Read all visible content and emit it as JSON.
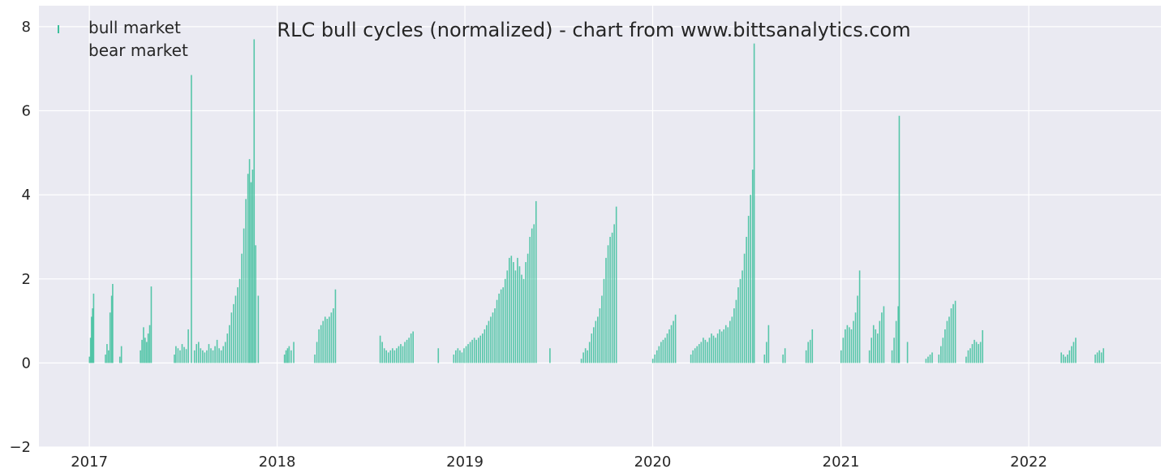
{
  "chart_data": {
    "type": "bar",
    "title": "RLC bull cycles (normalized)  - chart from www.bittsanalytics.com",
    "xlabel": "",
    "ylabel": "",
    "x_range": [
      "2016-09-25",
      "2022-09-15"
    ],
    "ylim": [
      -2,
      8.5
    ],
    "y_ticks": [
      -2,
      0,
      2,
      4,
      6,
      8
    ],
    "x_ticks": [
      {
        "date": "2017-01-01",
        "label": "2017"
      },
      {
        "date": "2018-01-01",
        "label": "2018"
      },
      {
        "date": "2019-01-01",
        "label": "2019"
      },
      {
        "date": "2020-01-01",
        "label": "2020"
      },
      {
        "date": "2021-01-01",
        "label": "2021"
      },
      {
        "date": "2022-01-01",
        "label": "2022"
      }
    ],
    "grid": true,
    "legend_placement": "upper-left",
    "colors": {
      "bull": "#3cbf9c",
      "bear": "#e07060",
      "background": "#eaeaf2",
      "grid": "#ffffff"
    },
    "series": [
      {
        "name": "bull market",
        "points": [
          [
            "2017-01-01",
            0.15
          ],
          [
            "2017-01-03",
            0.6
          ],
          [
            "2017-01-05",
            1.1
          ],
          [
            "2017-01-07",
            1.3
          ],
          [
            "2017-01-09",
            1.65
          ],
          [
            "2017-02-01",
            0.2
          ],
          [
            "2017-02-04",
            0.45
          ],
          [
            "2017-02-07",
            0.3
          ],
          [
            "2017-02-10",
            1.2
          ],
          [
            "2017-02-13",
            1.6
          ],
          [
            "2017-02-15",
            1.88
          ],
          [
            "2017-03-01",
            0.15
          ],
          [
            "2017-03-04",
            0.4
          ],
          [
            "2017-04-10",
            0.3
          ],
          [
            "2017-04-13",
            0.55
          ],
          [
            "2017-04-16",
            0.85
          ],
          [
            "2017-04-19",
            0.6
          ],
          [
            "2017-04-22",
            0.5
          ],
          [
            "2017-04-25",
            0.7
          ],
          [
            "2017-04-28",
            0.9
          ],
          [
            "2017-05-01",
            1.82
          ],
          [
            "2017-06-15",
            0.2
          ],
          [
            "2017-06-18",
            0.4
          ],
          [
            "2017-06-22",
            0.35
          ],
          [
            "2017-06-26",
            0.3
          ],
          [
            "2017-06-30",
            0.45
          ],
          [
            "2017-07-04",
            0.38
          ],
          [
            "2017-07-08",
            0.33
          ],
          [
            "2017-07-12",
            0.8
          ],
          [
            "2017-07-18",
            6.85
          ],
          [
            "2017-07-24",
            0.3
          ],
          [
            "2017-07-28",
            0.45
          ],
          [
            "2017-08-01",
            0.5
          ],
          [
            "2017-08-05",
            0.35
          ],
          [
            "2017-08-09",
            0.3
          ],
          [
            "2017-08-13",
            0.25
          ],
          [
            "2017-08-17",
            0.3
          ],
          [
            "2017-08-21",
            0.45
          ],
          [
            "2017-08-25",
            0.35
          ],
          [
            "2017-08-29",
            0.3
          ],
          [
            "2017-09-02",
            0.4
          ],
          [
            "2017-09-06",
            0.55
          ],
          [
            "2017-09-10",
            0.35
          ],
          [
            "2017-09-14",
            0.3
          ],
          [
            "2017-09-18",
            0.4
          ],
          [
            "2017-09-22",
            0.5
          ],
          [
            "2017-09-26",
            0.7
          ],
          [
            "2017-09-30",
            0.9
          ],
          [
            "2017-10-04",
            1.2
          ],
          [
            "2017-10-08",
            1.4
          ],
          [
            "2017-10-12",
            1.6
          ],
          [
            "2017-10-16",
            1.8
          ],
          [
            "2017-10-20",
            2.0
          ],
          [
            "2017-10-24",
            2.6
          ],
          [
            "2017-10-28",
            3.2
          ],
          [
            "2017-11-01",
            3.9
          ],
          [
            "2017-11-05",
            4.5
          ],
          [
            "2017-11-08",
            4.85
          ],
          [
            "2017-11-11",
            4.3
          ],
          [
            "2017-11-14",
            4.6
          ],
          [
            "2017-11-17",
            7.7
          ],
          [
            "2017-11-20",
            2.8
          ],
          [
            "2017-11-25",
            1.6
          ],
          [
            "2018-01-15",
            0.2
          ],
          [
            "2018-01-18",
            0.3
          ],
          [
            "2018-01-21",
            0.35
          ],
          [
            "2018-01-24",
            0.4
          ],
          [
            "2018-01-28",
            0.3
          ],
          [
            "2018-02-02",
            0.5
          ],
          [
            "2018-03-15",
            0.2
          ],
          [
            "2018-03-19",
            0.5
          ],
          [
            "2018-03-23",
            0.8
          ],
          [
            "2018-03-27",
            0.9
          ],
          [
            "2018-03-31",
            1.0
          ],
          [
            "2018-04-04",
            1.1
          ],
          [
            "2018-04-08",
            1.05
          ],
          [
            "2018-04-12",
            1.1
          ],
          [
            "2018-04-16",
            1.2
          ],
          [
            "2018-04-20",
            1.3
          ],
          [
            "2018-04-24",
            1.75
          ],
          [
            "2018-07-20",
            0.65
          ],
          [
            "2018-07-24",
            0.5
          ],
          [
            "2018-07-28",
            0.35
          ],
          [
            "2018-08-01",
            0.3
          ],
          [
            "2018-08-05",
            0.25
          ],
          [
            "2018-08-09",
            0.3
          ],
          [
            "2018-08-13",
            0.35
          ],
          [
            "2018-08-17",
            0.3
          ],
          [
            "2018-08-21",
            0.35
          ],
          [
            "2018-08-25",
            0.4
          ],
          [
            "2018-08-29",
            0.45
          ],
          [
            "2018-09-02",
            0.4
          ],
          [
            "2018-09-06",
            0.5
          ],
          [
            "2018-09-10",
            0.55
          ],
          [
            "2018-09-14",
            0.6
          ],
          [
            "2018-09-18",
            0.7
          ],
          [
            "2018-09-22",
            0.75
          ],
          [
            "2018-11-10",
            0.35
          ],
          [
            "2018-12-10",
            0.2
          ],
          [
            "2018-12-14",
            0.3
          ],
          [
            "2018-12-18",
            0.35
          ],
          [
            "2018-12-22",
            0.3
          ],
          [
            "2018-12-26",
            0.25
          ],
          [
            "2018-12-30",
            0.35
          ],
          [
            "2019-01-03",
            0.4
          ],
          [
            "2019-01-07",
            0.45
          ],
          [
            "2019-01-11",
            0.5
          ],
          [
            "2019-01-15",
            0.55
          ],
          [
            "2019-01-19",
            0.6
          ],
          [
            "2019-01-23",
            0.55
          ],
          [
            "2019-01-27",
            0.6
          ],
          [
            "2019-01-31",
            0.65
          ],
          [
            "2019-02-04",
            0.7
          ],
          [
            "2019-02-08",
            0.8
          ],
          [
            "2019-02-12",
            0.9
          ],
          [
            "2019-02-16",
            1.0
          ],
          [
            "2019-02-20",
            1.1
          ],
          [
            "2019-02-24",
            1.2
          ],
          [
            "2019-02-28",
            1.3
          ],
          [
            "2019-03-04",
            1.5
          ],
          [
            "2019-03-08",
            1.65
          ],
          [
            "2019-03-12",
            1.75
          ],
          [
            "2019-03-16",
            1.8
          ],
          [
            "2019-03-20",
            2.0
          ],
          [
            "2019-03-24",
            2.2
          ],
          [
            "2019-03-28",
            2.5
          ],
          [
            "2019-04-01",
            2.55
          ],
          [
            "2019-04-05",
            2.4
          ],
          [
            "2019-04-09",
            2.2
          ],
          [
            "2019-04-13",
            2.5
          ],
          [
            "2019-04-17",
            2.3
          ],
          [
            "2019-04-21",
            2.1
          ],
          [
            "2019-04-25",
            2.0
          ],
          [
            "2019-04-29",
            2.4
          ],
          [
            "2019-05-03",
            2.6
          ],
          [
            "2019-05-07",
            3.0
          ],
          [
            "2019-05-11",
            3.2
          ],
          [
            "2019-05-15",
            3.3
          ],
          [
            "2019-05-19",
            3.85
          ],
          [
            "2019-06-15",
            0.35
          ],
          [
            "2019-08-15",
            0.1
          ],
          [
            "2019-08-19",
            0.25
          ],
          [
            "2019-08-23",
            0.35
          ],
          [
            "2019-08-27",
            0.3
          ],
          [
            "2019-08-31",
            0.5
          ],
          [
            "2019-09-04",
            0.7
          ],
          [
            "2019-09-08",
            0.85
          ],
          [
            "2019-09-12",
            1.0
          ],
          [
            "2019-09-16",
            1.1
          ],
          [
            "2019-09-20",
            1.3
          ],
          [
            "2019-09-24",
            1.6
          ],
          [
            "2019-09-28",
            2.0
          ],
          [
            "2019-10-02",
            2.5
          ],
          [
            "2019-10-06",
            2.8
          ],
          [
            "2019-10-10",
            3.0
          ],
          [
            "2019-10-14",
            3.1
          ],
          [
            "2019-10-18",
            3.3
          ],
          [
            "2019-10-22",
            3.72
          ],
          [
            "2020-01-01",
            0.1
          ],
          [
            "2020-01-05",
            0.2
          ],
          [
            "2020-01-09",
            0.3
          ],
          [
            "2020-01-13",
            0.4
          ],
          [
            "2020-01-17",
            0.5
          ],
          [
            "2020-01-21",
            0.55
          ],
          [
            "2020-01-25",
            0.6
          ],
          [
            "2020-01-29",
            0.7
          ],
          [
            "2020-02-02",
            0.8
          ],
          [
            "2020-02-06",
            0.9
          ],
          [
            "2020-02-10",
            1.0
          ],
          [
            "2020-02-14",
            1.15
          ],
          [
            "2020-03-15",
            0.2
          ],
          [
            "2020-03-19",
            0.3
          ],
          [
            "2020-03-23",
            0.35
          ],
          [
            "2020-03-27",
            0.4
          ],
          [
            "2020-03-31",
            0.45
          ],
          [
            "2020-04-04",
            0.5
          ],
          [
            "2020-04-08",
            0.6
          ],
          [
            "2020-04-12",
            0.55
          ],
          [
            "2020-04-16",
            0.5
          ],
          [
            "2020-04-20",
            0.6
          ],
          [
            "2020-04-24",
            0.7
          ],
          [
            "2020-04-28",
            0.65
          ],
          [
            "2020-05-02",
            0.6
          ],
          [
            "2020-05-06",
            0.7
          ],
          [
            "2020-05-10",
            0.8
          ],
          [
            "2020-05-14",
            0.75
          ],
          [
            "2020-05-18",
            0.8
          ],
          [
            "2020-05-22",
            0.9
          ],
          [
            "2020-05-26",
            0.85
          ],
          [
            "2020-05-30",
            1.0
          ],
          [
            "2020-06-03",
            1.1
          ],
          [
            "2020-06-07",
            1.3
          ],
          [
            "2020-06-11",
            1.5
          ],
          [
            "2020-06-15",
            1.8
          ],
          [
            "2020-06-19",
            2.0
          ],
          [
            "2020-06-23",
            2.2
          ],
          [
            "2020-06-27",
            2.6
          ],
          [
            "2020-07-01",
            3.0
          ],
          [
            "2020-07-05",
            3.5
          ],
          [
            "2020-07-09",
            4.0
          ],
          [
            "2020-07-13",
            4.6
          ],
          [
            "2020-07-16",
            7.6
          ],
          [
            "2020-08-05",
            0.2
          ],
          [
            "2020-08-09",
            0.5
          ],
          [
            "2020-08-13",
            0.9
          ],
          [
            "2020-09-10",
            0.2
          ],
          [
            "2020-09-14",
            0.35
          ],
          [
            "2020-10-25",
            0.3
          ],
          [
            "2020-10-29",
            0.5
          ],
          [
            "2020-11-02",
            0.55
          ],
          [
            "2020-11-06",
            0.8
          ],
          [
            "2021-01-01",
            0.3
          ],
          [
            "2021-01-05",
            0.6
          ],
          [
            "2021-01-09",
            0.8
          ],
          [
            "2021-01-13",
            0.9
          ],
          [
            "2021-01-17",
            0.85
          ],
          [
            "2021-01-21",
            0.8
          ],
          [
            "2021-01-25",
            1.0
          ],
          [
            "2021-01-29",
            1.2
          ],
          [
            "2021-02-02",
            1.6
          ],
          [
            "2021-02-06",
            2.2
          ],
          [
            "2021-02-25",
            0.3
          ],
          [
            "2021-03-01",
            0.6
          ],
          [
            "2021-03-05",
            0.9
          ],
          [
            "2021-03-09",
            0.8
          ],
          [
            "2021-03-13",
            0.7
          ],
          [
            "2021-03-17",
            1.0
          ],
          [
            "2021-03-21",
            1.2
          ],
          [
            "2021-03-25",
            1.35
          ],
          [
            "2021-04-10",
            0.3
          ],
          [
            "2021-04-14",
            0.6
          ],
          [
            "2021-04-18",
            1.0
          ],
          [
            "2021-04-22",
            1.35
          ],
          [
            "2021-04-24",
            5.88
          ],
          [
            "2021-05-10",
            0.5
          ],
          [
            "2021-06-15",
            0.1
          ],
          [
            "2021-06-19",
            0.15
          ],
          [
            "2021-06-23",
            0.2
          ],
          [
            "2021-06-27",
            0.25
          ],
          [
            "2021-07-10",
            0.2
          ],
          [
            "2021-07-14",
            0.4
          ],
          [
            "2021-07-18",
            0.6
          ],
          [
            "2021-07-22",
            0.8
          ],
          [
            "2021-07-26",
            1.0
          ],
          [
            "2021-07-30",
            1.1
          ],
          [
            "2021-08-03",
            1.3
          ],
          [
            "2021-08-07",
            1.4
          ],
          [
            "2021-08-11",
            1.48
          ],
          [
            "2021-09-01",
            0.15
          ],
          [
            "2021-09-05",
            0.3
          ],
          [
            "2021-09-09",
            0.35
          ],
          [
            "2021-09-13",
            0.45
          ],
          [
            "2021-09-17",
            0.55
          ],
          [
            "2021-09-21",
            0.5
          ],
          [
            "2021-09-25",
            0.45
          ],
          [
            "2021-09-29",
            0.5
          ],
          [
            "2021-10-03",
            0.78
          ],
          [
            "2022-03-05",
            0.25
          ],
          [
            "2022-03-09",
            0.2
          ],
          [
            "2022-03-13",
            0.15
          ],
          [
            "2022-03-17",
            0.2
          ],
          [
            "2022-03-21",
            0.3
          ],
          [
            "2022-03-25",
            0.4
          ],
          [
            "2022-03-29",
            0.5
          ],
          [
            "2022-04-02",
            0.6
          ],
          [
            "2022-05-10",
            0.2
          ],
          [
            "2022-05-14",
            0.25
          ],
          [
            "2022-05-18",
            0.3
          ],
          [
            "2022-05-22",
            0.25
          ],
          [
            "2022-05-26",
            0.35
          ]
        ]
      },
      {
        "name": "bear market",
        "points": []
      }
    ]
  }
}
